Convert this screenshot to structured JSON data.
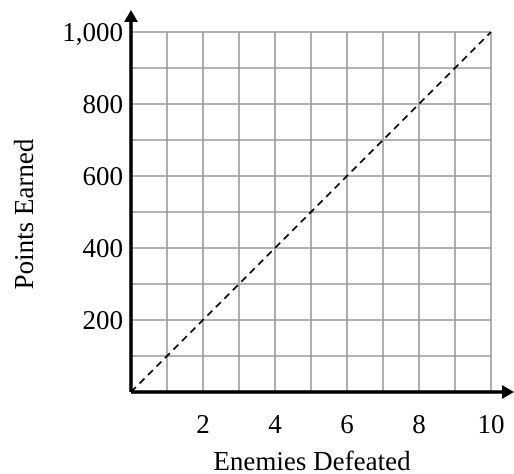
{
  "chart_data": {
    "type": "line",
    "title": "",
    "xlabel": "Enemies Defeated",
    "ylabel": "Points Earned",
    "xlim": [
      0,
      10
    ],
    "ylim": [
      0,
      1000
    ],
    "x_ticks": [
      2,
      4,
      6,
      8,
      10
    ],
    "x_tick_labels": [
      "2",
      "4",
      "6",
      "8",
      "10"
    ],
    "y_ticks": [
      200,
      400,
      600,
      800,
      1000
    ],
    "y_tick_labels": [
      "200",
      "400",
      "600",
      "800",
      "1,000"
    ],
    "grid": true,
    "x_grid_step": 1,
    "y_grid_step": 100,
    "series": [
      {
        "style": "dashed",
        "color": "#000000",
        "x": [
          0,
          10
        ],
        "y": [
          0,
          1000
        ]
      }
    ]
  }
}
